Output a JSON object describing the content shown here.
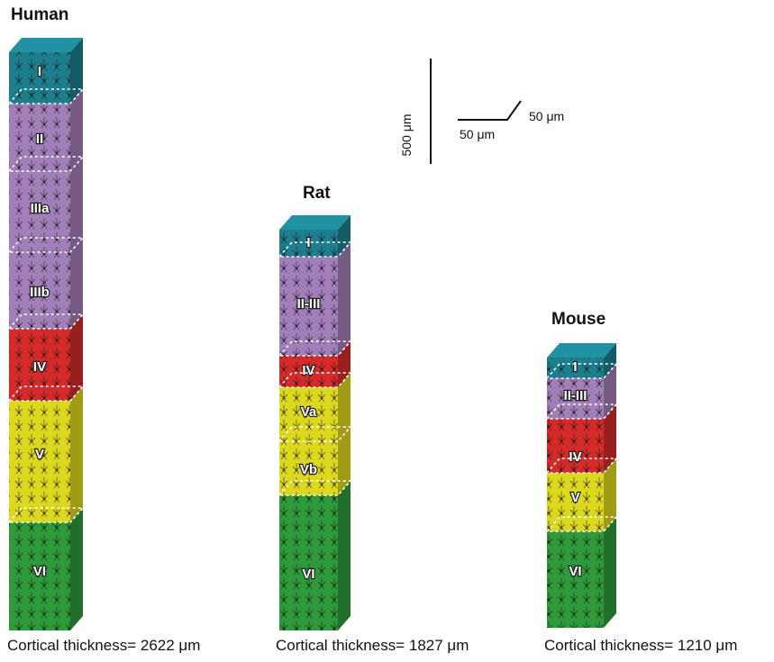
{
  "columns": [
    {
      "title": "Human",
      "layers": [
        {
          "label": "I"
        },
        {
          "label": "II"
        },
        {
          "label": "IIIa"
        },
        {
          "label": "IIIb"
        },
        {
          "label": "IV"
        },
        {
          "label": "V"
        },
        {
          "label": "VI"
        }
      ],
      "thickness": "Cortical thickness= 2622 μm"
    },
    {
      "title": "Rat",
      "layers": [
        {
          "label": "I"
        },
        {
          "label": "II-III"
        },
        {
          "label": "IV"
        },
        {
          "label": "Va"
        },
        {
          "label": "Vb"
        },
        {
          "label": "VI"
        }
      ],
      "thickness": "Cortical thickness= 1827 μm"
    },
    {
      "title": "Mouse",
      "layers": [
        {
          "label": "I"
        },
        {
          "label": "II-III"
        },
        {
          "label": "IV"
        },
        {
          "label": "V"
        },
        {
          "label": "VI"
        }
      ],
      "thickness": "Cortical thickness= 1210 μm"
    }
  ],
  "scale": {
    "vertical": "500 μm",
    "horizontal": "50 μm",
    "depth": "50 μm"
  }
}
